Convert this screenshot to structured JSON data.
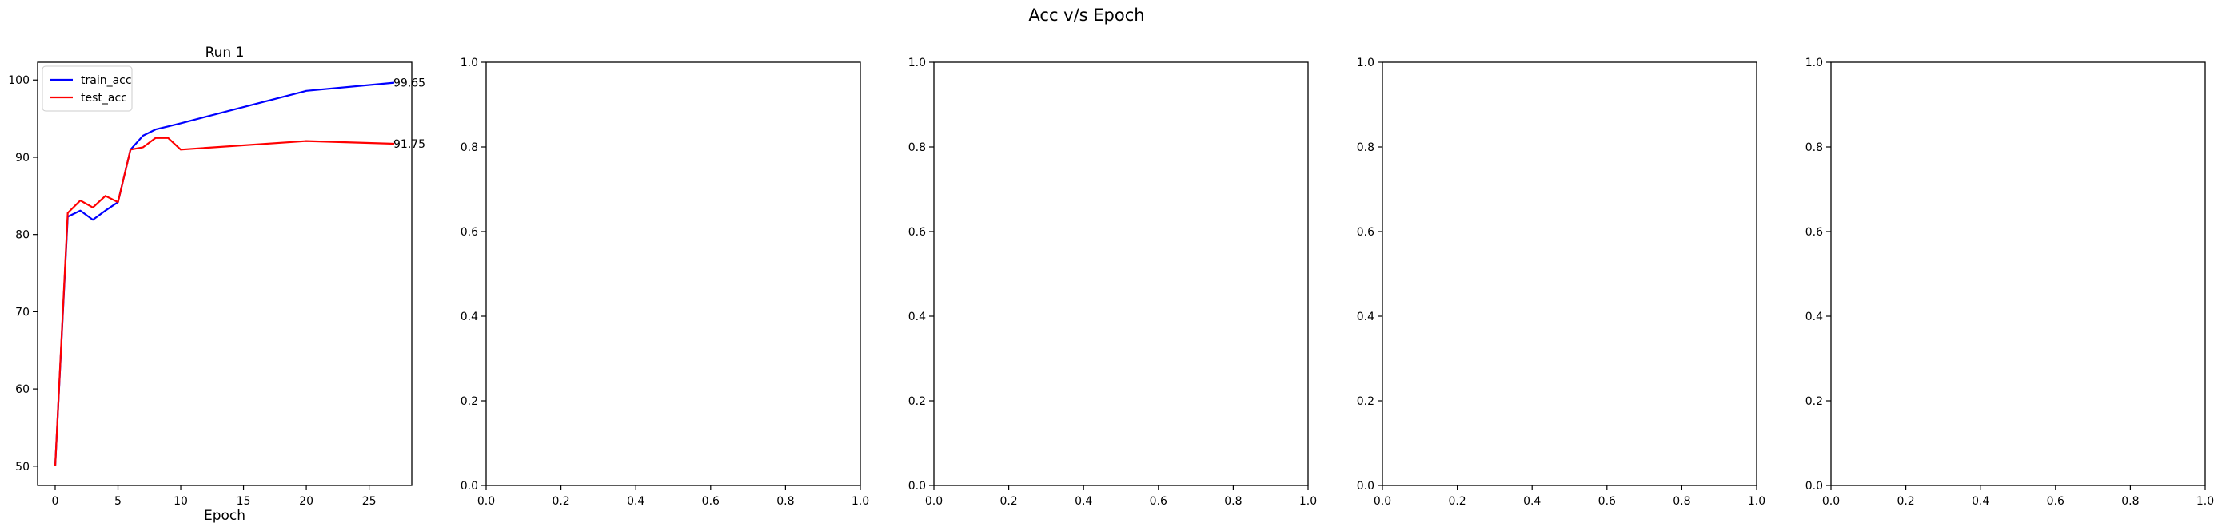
{
  "figure": {
    "title": "Acc v/s Epoch"
  },
  "chart_data": [
    {
      "type": "line",
      "title": "Run 1",
      "xlabel": "Epoch",
      "ylabel": "",
      "xlim": [
        -1.4,
        28.4
      ],
      "ylim": [
        47.5,
        102.3
      ],
      "xticks": [
        0,
        5,
        10,
        15,
        20,
        25
      ],
      "yticks": [
        50,
        60,
        70,
        80,
        90,
        100
      ],
      "grid": false,
      "legend": "upper-left",
      "series": [
        {
          "name": "train_acc",
          "color": "#0000ff",
          "x": [
            0,
            1,
            2,
            3,
            4,
            5,
            6,
            7,
            8,
            9,
            10,
            20,
            27
          ],
          "y": [
            50.0,
            82.3,
            83.1,
            81.9,
            83.1,
            84.2,
            91.0,
            92.8,
            93.6,
            94.0,
            94.4,
            98.6,
            99.65
          ],
          "end_label": "99.65"
        },
        {
          "name": "test_acc",
          "color": "#ff0000",
          "x": [
            0,
            1,
            2,
            3,
            4,
            5,
            6,
            7,
            8,
            9,
            10,
            20,
            27
          ],
          "y": [
            50.0,
            82.8,
            84.4,
            83.5,
            85.0,
            84.2,
            91.0,
            91.3,
            92.5,
            92.5,
            91.0,
            92.1,
            91.75
          ],
          "end_label": "91.75"
        }
      ]
    },
    {
      "type": "line",
      "title": "",
      "xlabel": "",
      "xlim": [
        0,
        1
      ],
      "ylim": [
        0,
        1
      ],
      "xticks": [
        "0.0",
        "0.2",
        "0.4",
        "0.6",
        "0.8",
        "1.0"
      ],
      "yticks": [
        "0.0",
        "0.2",
        "0.4",
        "0.6",
        "0.8",
        "1.0"
      ],
      "series": []
    },
    {
      "type": "line",
      "title": "",
      "xlabel": "",
      "xlim": [
        0,
        1
      ],
      "ylim": [
        0,
        1
      ],
      "xticks": [
        "0.0",
        "0.2",
        "0.4",
        "0.6",
        "0.8",
        "1.0"
      ],
      "yticks": [
        "0.0",
        "0.2",
        "0.4",
        "0.6",
        "0.8",
        "1.0"
      ],
      "series": []
    },
    {
      "type": "line",
      "title": "",
      "xlabel": "",
      "xlim": [
        0,
        1
      ],
      "ylim": [
        0,
        1
      ],
      "xticks": [
        "0.0",
        "0.2",
        "0.4",
        "0.6",
        "0.8",
        "1.0"
      ],
      "yticks": [
        "0.0",
        "0.2",
        "0.4",
        "0.6",
        "0.8",
        "1.0"
      ],
      "series": []
    },
    {
      "type": "line",
      "title": "",
      "xlabel": "",
      "xlim": [
        0,
        1
      ],
      "ylim": [
        0,
        1
      ],
      "xticks": [
        "0.0",
        "0.2",
        "0.4",
        "0.6",
        "0.8",
        "1.0"
      ],
      "yticks": [
        "0.0",
        "0.2",
        "0.4",
        "0.6",
        "0.8",
        "1.0"
      ],
      "series": []
    }
  ]
}
